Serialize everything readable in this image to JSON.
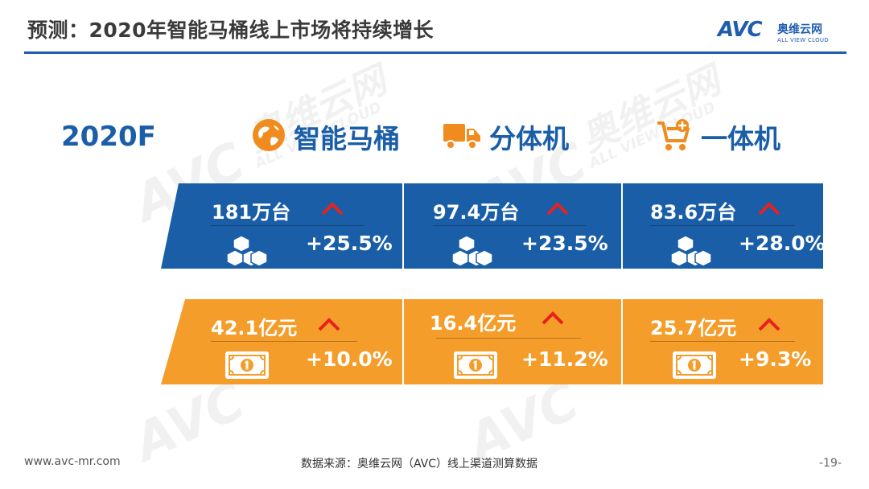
{
  "header": {
    "title": "预测：2020年智能马桶线上市场将持续增长",
    "logo_mark": "AVC",
    "logo_cn": "奥维云网",
    "logo_en": "ALL VIEW CLOUD"
  },
  "watermark": {
    "mark": "AVC",
    "cn": "奥维云网",
    "en": "ALL VIEW CLOUD"
  },
  "year_label": "2020F",
  "columns": [
    {
      "label": "智能马桶",
      "icon": "globe-icon"
    },
    {
      "label": "分体机",
      "icon": "truck-icon"
    },
    {
      "label": "一体机",
      "icon": "cart-icon"
    }
  ],
  "volume_row": [
    {
      "value": "181万台",
      "growth": "+25.5%",
      "trend": "up",
      "icon": "boxes-icon"
    },
    {
      "value": "97.4万台",
      "growth": "+23.5%",
      "trend": "up",
      "icon": "boxes-icon"
    },
    {
      "value": "83.6万台",
      "growth": "+28.0%",
      "trend": "up",
      "icon": "boxes-icon"
    }
  ],
  "revenue_row": [
    {
      "value": "42.1亿元",
      "growth": "+10.0%",
      "trend": "up",
      "icon": "banknote-icon"
    },
    {
      "value": "16.4亿元",
      "growth": "+11.2%",
      "trend": "up",
      "icon": "banknote-icon"
    },
    {
      "value": "25.7亿元",
      "growth": "+9.3%",
      "trend": "up",
      "icon": "banknote-icon"
    }
  ],
  "colors": {
    "blue": "#1a5ea8",
    "orange": "#f49d2a",
    "icon_orange": "#f08c1e",
    "arrow_red": "#e8211c"
  },
  "footer": {
    "website": "www.avc-mr.com",
    "source": "数据来源：奥维云网（AVC）线上渠道测算数据",
    "page": "-19-"
  }
}
